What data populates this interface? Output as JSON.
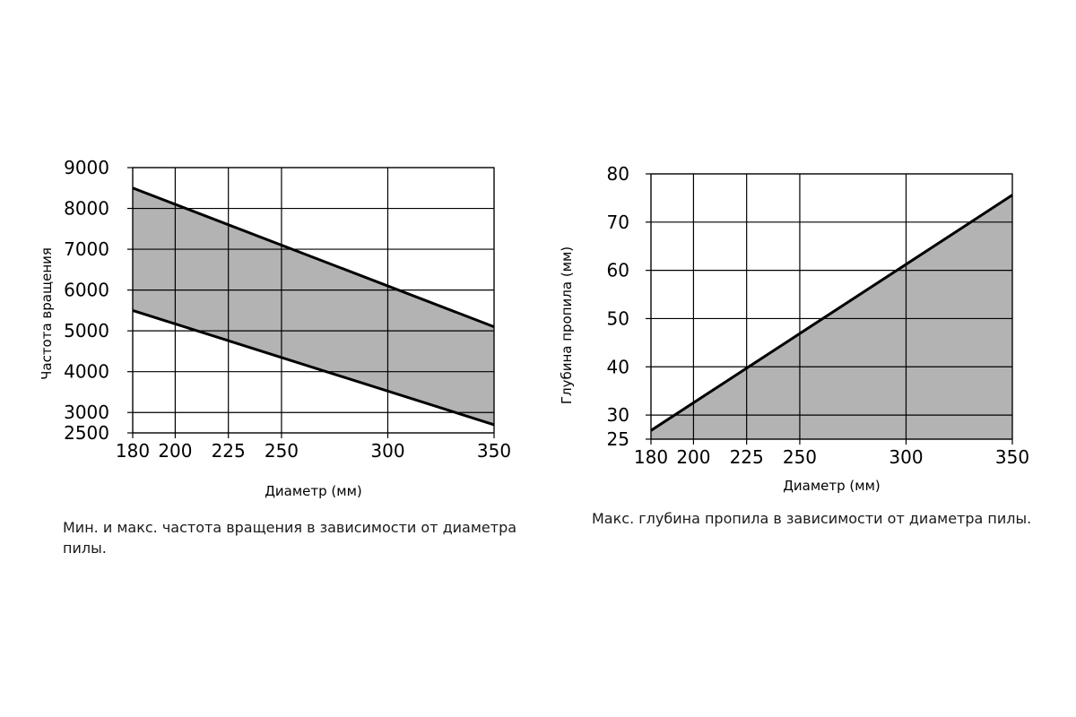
{
  "chart_data": [
    {
      "type": "area",
      "xlabel": "Диаметр (мм)",
      "ylabel": "Частота вращения",
      "x_ticks": [
        180,
        200,
        225,
        250,
        300,
        350
      ],
      "y_ticks": [
        2500,
        3000,
        4000,
        5000,
        6000,
        7000,
        8000,
        9000
      ],
      "xlim": [
        180,
        350
      ],
      "ylim": [
        2500,
        9000
      ],
      "grid": true,
      "fill_color": "#b3b3b3",
      "series": [
        {
          "x": [
            180,
            350
          ],
          "y": [
            8500,
            5100
          ]
        },
        {
          "x": [
            180,
            350
          ],
          "y": [
            5500,
            2700
          ]
        }
      ],
      "caption": "Мин. и макс. частота вращения в зависимости от диаметра пилы."
    },
    {
      "type": "area",
      "xlabel": "Диаметр (мм)",
      "ylabel": "Глубина пропила (мм)",
      "x_ticks": [
        180,
        200,
        225,
        250,
        300,
        350
      ],
      "y_ticks": [
        25,
        30,
        40,
        50,
        60,
        70,
        80
      ],
      "xlim": [
        180,
        350
      ],
      "ylim": [
        25,
        80
      ],
      "grid": true,
      "fill_color": "#b3b3b3",
      "series": [
        {
          "x": [
            180,
            350
          ],
          "y": [
            26.8,
            75.6
          ]
        }
      ],
      "caption": "Макс. глубина пропила в зависимости от диаметра пилы."
    }
  ]
}
